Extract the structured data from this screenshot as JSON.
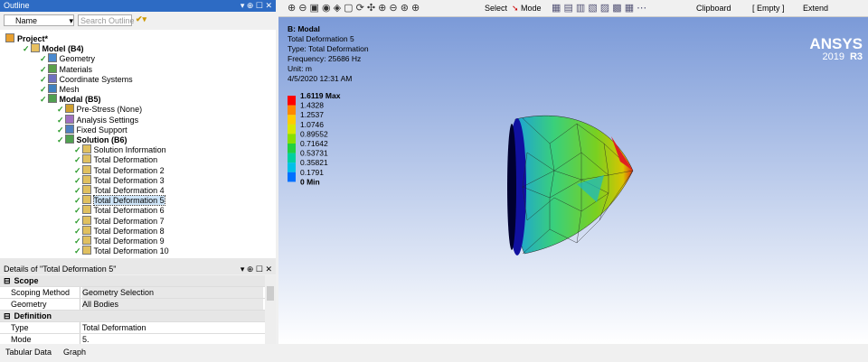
{
  "outline": {
    "title": "Outline",
    "name_filter": "Name",
    "search_placeholder": "Search Outline",
    "tree": [
      "Project*",
      "Model (B4)",
      "Geometry",
      "Materials",
      "Coordinate Systems",
      "Mesh",
      "Modal (B5)",
      "Pre-Stress (None)",
      "Analysis Settings",
      "Fixed Support",
      "Solution (B6)",
      "Solution Information",
      "Total Deformation",
      "Total Deformation 2",
      "Total Deformation 3",
      "Total Deformation 4",
      "Total Deformation 5",
      "Total Deformation 6",
      "Total Deformation 7",
      "Total Deformation 8",
      "Total Deformation 9",
      "Total Deformation 10"
    ]
  },
  "viewport": {
    "toolbar": {
      "select": "Select",
      "mode": "Mode",
      "clipboard": "Clipboard",
      "empty": "[ Empty ]",
      "extend": "Extend"
    },
    "info": [
      "B: Modal",
      "Total Deformation 5",
      "Type: Total Deformation",
      "Frequency: 25686 Hz",
      "Unit: m",
      "4/5/2020 12:31 AM"
    ],
    "legend": [
      "1.6119 Max",
      "1.4328",
      "1.2537",
      "1.0746",
      "0.89552",
      "0.71642",
      "0.53731",
      "0.35821",
      "0.1791",
      "0 Min"
    ],
    "logo": {
      "name": "ANSYS",
      "version": "2019",
      "release": "R3"
    }
  },
  "details": {
    "title": "Details of \"Total Deformation 5\"",
    "groups": [
      {
        "name": "Scope",
        "rows": [
          [
            "Scoping Method",
            "Geometry Selection"
          ],
          [
            "Geometry",
            "All Bodies"
          ]
        ]
      },
      {
        "name": "Definition",
        "rows": [
          [
            "Type",
            "Total Deformation"
          ],
          [
            "Mode",
            "5."
          ]
        ]
      }
    ]
  },
  "tabs": [
    "Tabular Data",
    "Graph"
  ]
}
